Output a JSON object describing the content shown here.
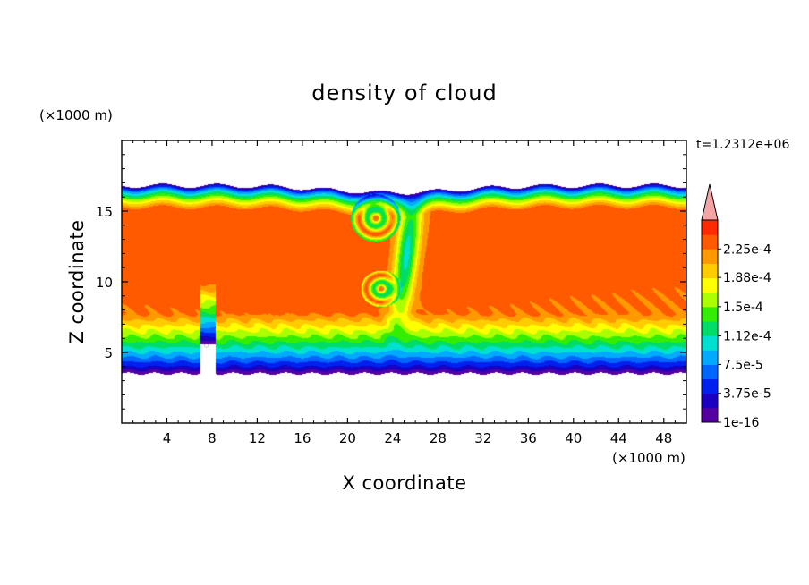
{
  "chart_data": {
    "type": "heatmap",
    "title": "density of cloud",
    "time_label": "t=1.2312e+06",
    "xlabel": "X coordinate",
    "ylabel": "Z coordinate",
    "x_unit": "(×1000 m)",
    "y_unit": "(×1000 m)",
    "xlim": [
      0,
      50
    ],
    "ylim": [
      0,
      20
    ],
    "x_ticks": [
      4,
      8,
      12,
      16,
      20,
      24,
      28,
      32,
      36,
      40,
      44,
      48
    ],
    "y_ticks": [
      5,
      10,
      15
    ],
    "colorbar": {
      "labels": [
        "2.25e-4",
        "1.88e-4",
        "1.5e-4",
        "1.12e-4",
        "7.5e-5",
        "3.75e-5",
        "1e-16"
      ],
      "label_values": [
        0.000225,
        0.000188,
        0.00015,
        0.000112,
        7.5e-05,
        3.75e-05,
        1e-16
      ],
      "levels": [
        1e-16,
        1.875e-05,
        3.75e-05,
        5.625e-05,
        7.5e-05,
        9.375e-05,
        0.0001125,
        0.00013125,
        0.00015,
        0.00016875,
        0.0001875,
        0.00020625,
        0.000225,
        0.00024375
      ],
      "colors": [
        "#5500a0",
        "#1a00c0",
        "#0020f0",
        "#0066ff",
        "#00aaff",
        "#00e0d0",
        "#00dd66",
        "#33ee00",
        "#aaff00",
        "#ffff00",
        "#ffcc00",
        "#ff9900",
        "#ff5a00",
        "#ff2a00"
      ],
      "extend_max_color": "#f4a4a4"
    },
    "cloud_layer": {
      "base_z": 3.5,
      "top_z": 16.8,
      "core_value": 0.00024
    },
    "features": [
      {
        "name": "vortex",
        "x": 22.5,
        "z": 14.5
      },
      {
        "name": "vortex",
        "x": 23.0,
        "z": 9.5
      },
      {
        "name": "terrain-bump",
        "x": 7.5,
        "z": 5.5
      }
    ]
  }
}
